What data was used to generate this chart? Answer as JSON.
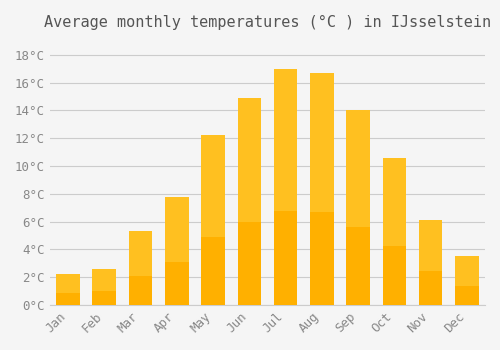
{
  "title": "Average monthly temperatures (°C ) in IJsselstein",
  "months": [
    "Jan",
    "Feb",
    "Mar",
    "Apr",
    "May",
    "Jun",
    "Jul",
    "Aug",
    "Sep",
    "Oct",
    "Nov",
    "Dec"
  ],
  "values": [
    2.2,
    2.6,
    5.3,
    7.8,
    12.2,
    14.9,
    17.0,
    16.7,
    14.0,
    10.6,
    6.1,
    3.5
  ],
  "bar_color_top": "#FFC020",
  "bar_color_bottom": "#FFB000",
  "background_color": "#F5F5F5",
  "grid_color": "#CCCCCC",
  "ylim": [
    0,
    19
  ],
  "yticks": [
    0,
    2,
    4,
    6,
    8,
    10,
    12,
    14,
    16,
    18
  ],
  "ytick_labels": [
    "0°C",
    "2°C",
    "4°C",
    "6°C",
    "8°C",
    "10°C",
    "12°C",
    "14°C",
    "16°C",
    "18°C"
  ],
  "title_fontsize": 11,
  "tick_fontsize": 9,
  "tick_color": "#888888",
  "spine_color": "#CCCCCC"
}
